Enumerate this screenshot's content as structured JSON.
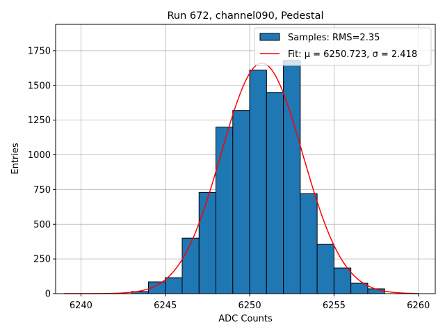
{
  "chart_data": {
    "type": "bar",
    "title": "Run 672, channel090, Pedestal",
    "xlabel": "ADC Counts",
    "ylabel": "Entries",
    "xlim": [
      6238.5,
      6261.0
    ],
    "ylim": [
      0,
      1940
    ],
    "xticks": [
      6240,
      6245,
      6250,
      6255,
      6260
    ],
    "yticks": [
      0,
      250,
      500,
      750,
      1000,
      1250,
      1500,
      1750
    ],
    "grid": true,
    "legend_position": "top-right",
    "bins": [
      {
        "left": 6243,
        "right": 6244,
        "value": 15
      },
      {
        "left": 6244,
        "right": 6245,
        "value": 85
      },
      {
        "left": 6245,
        "right": 6246,
        "value": 115
      },
      {
        "left": 6246,
        "right": 6247,
        "value": 400
      },
      {
        "left": 6247,
        "right": 6248,
        "value": 730
      },
      {
        "left": 6248,
        "right": 6249,
        "value": 1200
      },
      {
        "left": 6249,
        "right": 6250,
        "value": 1320
      },
      {
        "left": 6250,
        "right": 6251,
        "value": 1610
      },
      {
        "left": 6251,
        "right": 6252,
        "value": 1450
      },
      {
        "left": 6252,
        "right": 6253,
        "value": 1680
      },
      {
        "left": 6253,
        "right": 6254,
        "value": 720
      },
      {
        "left": 6254,
        "right": 6255,
        "value": 355
      },
      {
        "left": 6255,
        "right": 6256,
        "value": 185
      },
      {
        "left": 6256,
        "right": 6257,
        "value": 75
      },
      {
        "left": 6257,
        "right": 6258,
        "value": 35
      }
    ],
    "fit": {
      "type": "gaussian",
      "mu": 6250.723,
      "sigma": 2.418,
      "amplitude": 1660,
      "x_range": [
        6239,
        6260
      ]
    },
    "series": [
      {
        "name": "Samples: RMS=2.35",
        "kind": "histogram",
        "color": "#1f77b4",
        "edge_color": "#000000"
      },
      {
        "name": "Fit: μ = 6250.723, σ = 2.418",
        "kind": "line",
        "color": "#ff0000"
      }
    ]
  }
}
